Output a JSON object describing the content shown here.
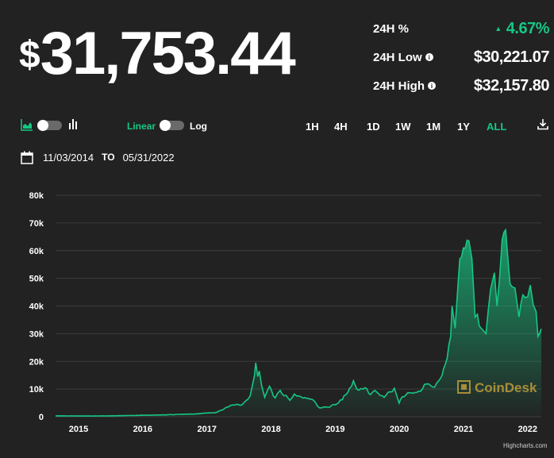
{
  "price": {
    "currency_symbol": "$",
    "value": "31,753.44"
  },
  "stats": {
    "change_label": "24H %",
    "change_value": "4.67%",
    "change_direction": "up",
    "low_label": "24H Low",
    "low_value": "$30,221.07",
    "high_label": "24H High",
    "high_value": "$32,157.80",
    "info_glyph": "i"
  },
  "controls": {
    "chart_type_toggle": {
      "left_icon": "area-chart-icon",
      "right_icon": "bar-chart-icon",
      "state": "left"
    },
    "scale_left_label": "Linear",
    "scale_right_label": "Log",
    "scale_state": "Linear",
    "ranges": [
      "1H",
      "4H",
      "1D",
      "1W",
      "1M",
      "1Y",
      "ALL"
    ],
    "active_range": "ALL",
    "download_icon": "download-icon"
  },
  "dates": {
    "icon": "calendar-icon",
    "from": "11/03/2014",
    "separator": "TO",
    "to": "05/31/2022"
  },
  "colors": {
    "background": "#222222",
    "accent_green": "#16c784",
    "text": "#ffffff",
    "gridline": "#3d3d3d"
  },
  "watermark": "CoinDesk",
  "credit": "Highcharts.com",
  "chart_data": {
    "type": "area",
    "title": "",
    "xlabel": "",
    "ylabel": "",
    "ylim": [
      0,
      80000
    ],
    "y_ticks": [
      "0",
      "10k",
      "20k",
      "30k",
      "40k",
      "50k",
      "60k",
      "70k",
      "80k"
    ],
    "x_ticks": [
      "2015",
      "2016",
      "2017",
      "2018",
      "2019",
      "2020",
      "2021",
      "2022"
    ],
    "x_range": [
      "2014-11-03",
      "2022-05-31"
    ],
    "grid": true,
    "series": [
      {
        "color": "#16c784",
        "x": [
          "2014-11-03",
          "2015-01-15",
          "2015-06-01",
          "2016-01-01",
          "2016-07-01",
          "2017-01-01",
          "2017-05-01",
          "2017-08-01",
          "2017-10-01",
          "2017-11-15",
          "2017-12-10",
          "2017-12-17",
          "2017-12-28",
          "2018-01-06",
          "2018-01-20",
          "2018-02-06",
          "2018-03-05",
          "2018-04-06",
          "2018-05-05",
          "2018-06-29",
          "2018-07-25",
          "2018-09-01",
          "2018-11-01",
          "2018-12-15",
          "2019-02-01",
          "2019-04-02",
          "2019-05-15",
          "2019-06-26",
          "2019-07-15",
          "2019-09-01",
          "2019-10-01",
          "2019-10-26",
          "2019-12-18",
          "2020-02-14",
          "2020-03-12",
          "2020-03-20",
          "2020-05-01",
          "2020-07-01",
          "2020-08-15",
          "2020-10-01",
          "2020-11-01",
          "2020-12-01",
          "2020-12-31",
          "2021-01-08",
          "2021-01-25",
          "2021-02-21",
          "2021-03-13",
          "2021-04-14",
          "2021-05-01",
          "2021-05-19",
          "2021-06-01",
          "2021-06-22",
          "2021-07-20",
          "2021-08-15",
          "2021-09-06",
          "2021-09-21",
          "2021-10-20",
          "2021-11-09",
          "2021-11-26",
          "2021-12-04",
          "2022-01-01",
          "2022-01-24",
          "2022-02-15",
          "2022-03-01",
          "2022-03-29",
          "2022-04-15",
          "2022-05-01",
          "2022-05-12",
          "2022-05-20",
          "2022-05-31"
        ],
        "y": [
          320,
          300,
          240,
          430,
          650,
          1000,
          1500,
          4200,
          4400,
          7500,
          15000,
          19500,
          14500,
          16500,
          11000,
          7000,
          11000,
          6800,
          9500,
          5900,
          8200,
          7200,
          6300,
          3200,
          3450,
          5000,
          8000,
          13000,
          10000,
          10500,
          8000,
          9500,
          7000,
          10300,
          4900,
          6200,
          8700,
          9200,
          11800,
          10700,
          13700,
          19100,
          29000,
          40000,
          32000,
          57000,
          61000,
          63500,
          57000,
          36000,
          37000,
          32000,
          30000,
          46000,
          52000,
          40000,
          64000,
          67500,
          54000,
          48000,
          46500,
          36000,
          44000,
          43000,
          47500,
          40500,
          38000,
          29000,
          30000,
          31753
        ]
      }
    ]
  }
}
